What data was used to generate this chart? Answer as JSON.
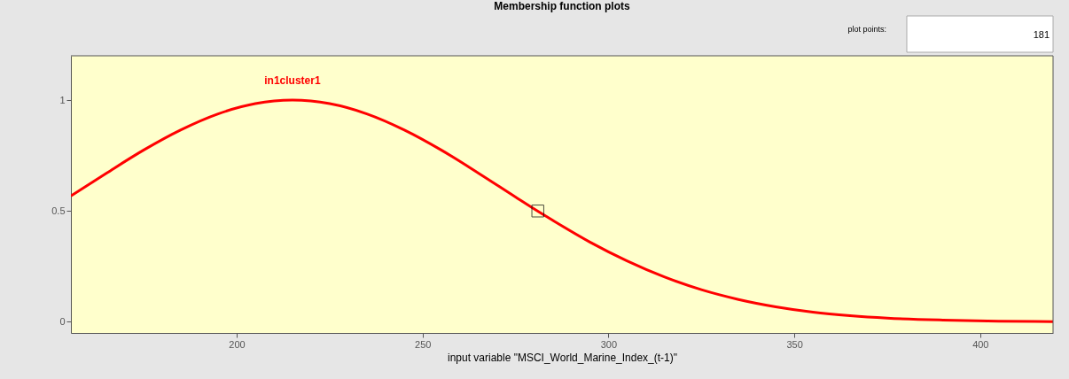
{
  "chart_data": {
    "type": "line",
    "title": "Membership function plots",
    "xlabel": "input variable \"MSCI_World_Marine_Index_(t-1)\"",
    "xlim": [
      155.4,
      419.6
    ],
    "xticks": [
      200,
      250,
      300,
      350,
      400
    ],
    "ylim": [
      -0.05,
      1.2
    ],
    "yticks": [
      0,
      0.5,
      1
    ],
    "grid": false,
    "series": [
      {
        "color": "#ff0000",
        "x": [
          155.4,
          165,
          175,
          185,
          195,
          205,
          215,
          225,
          235,
          245,
          255,
          265,
          275,
          281,
          285,
          295,
          305,
          315,
          325,
          335,
          345,
          355,
          365,
          375,
          390,
          405,
          419.6
        ],
        "values": [
          0.568,
          0.671,
          0.775,
          0.866,
          0.938,
          0.984,
          1,
          0.984,
          0.938,
          0.866,
          0.775,
          0.671,
          0.563,
          0.499,
          0.458,
          0.36,
          0.275,
          0.203,
          0.145,
          0.101,
          0.068,
          0.044,
          0.028,
          0.017,
          0.008,
          0.003,
          0.001
        ],
        "marker": "none"
      },
      {
        "type": "scatter",
        "color": "#000000",
        "x": [
          281
        ],
        "values": [
          0.5
        ],
        "marker": "square"
      }
    ],
    "annotations": [
      "in1cluster1",
      "plot points:",
      "181"
    ]
  }
}
